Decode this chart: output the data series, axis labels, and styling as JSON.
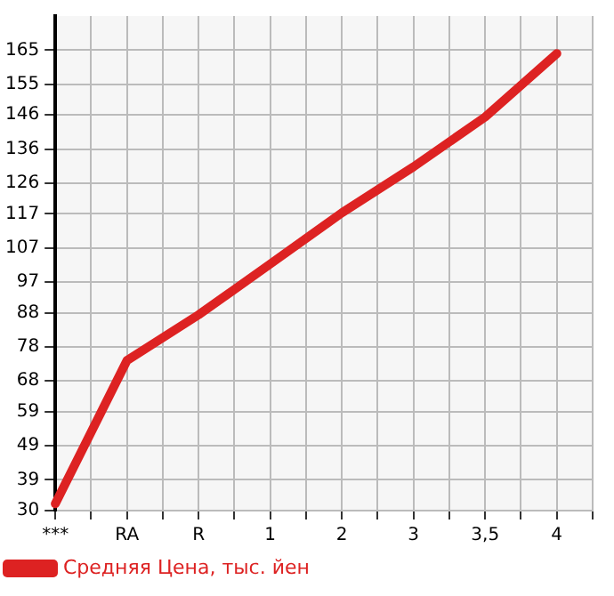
{
  "chart_data": {
    "type": "line",
    "categories": [
      "***",
      "RA",
      "R",
      "1",
      "2",
      "3",
      "3,5",
      "4"
    ],
    "series": [
      {
        "name": "Средняя Цена, тыс. йен",
        "color": "#dd2222",
        "values": [
          32,
          74,
          87.4,
          102.3,
          117.3,
          130.8,
          145.4,
          164
        ]
      }
    ],
    "ylim": [
      30,
      175
    ],
    "yticks": [
      30,
      39,
      49,
      59,
      68,
      78,
      88,
      97,
      107,
      117,
      126,
      136,
      146,
      155,
      165
    ],
    "grid": true,
    "legend": "bottom left",
    "marker": "none",
    "line_style": "solid"
  }
}
